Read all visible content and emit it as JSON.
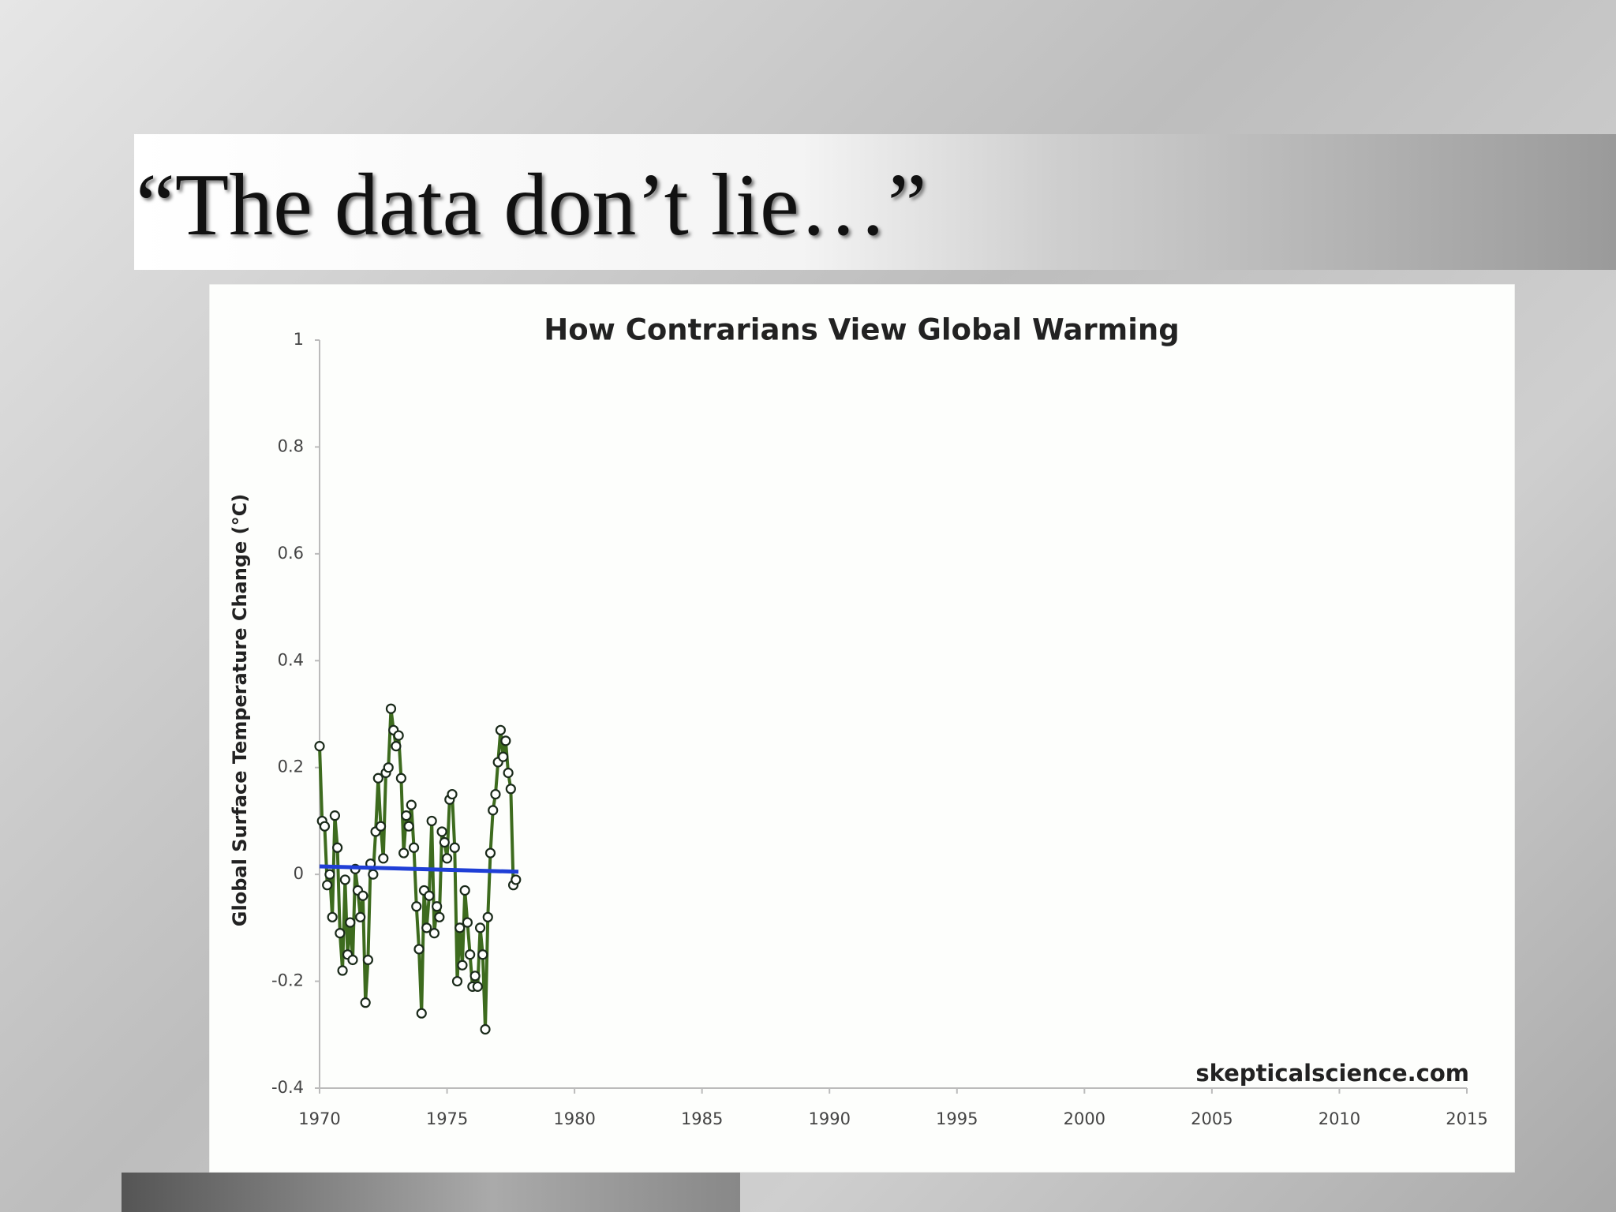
{
  "slide_title": "“The data don’t lie…”",
  "chart_data": {
    "type": "line",
    "title": "How Contrarians View Global Warming",
    "y_label": "Global Surface Temperature Change (°C)",
    "watermark": "skepticalscience.com",
    "xlim": [
      1970,
      2015
    ],
    "xticks": [
      1970,
      1975,
      1980,
      1985,
      1990,
      1995,
      2000,
      2005,
      2010,
      2015
    ],
    "ylim": [
      -0.4,
      1
    ],
    "yticks": [
      -0.4,
      -0.2,
      0,
      0.2,
      0.4,
      0.6,
      0.8,
      1
    ],
    "series": [
      {
        "color": "#3d6b1e",
        "marker": true,
        "x": [
          1970.0,
          1970.1,
          1970.2,
          1970.3,
          1970.4,
          1970.5,
          1970.6,
          1970.7,
          1970.8,
          1970.9,
          1971.0,
          1971.1,
          1971.2,
          1971.3,
          1971.4,
          1971.5,
          1971.6,
          1971.7,
          1971.8,
          1971.9,
          1972.0,
          1972.1,
          1972.2,
          1972.3,
          1972.4,
          1972.5,
          1972.6,
          1972.7,
          1972.8,
          1972.9,
          1973.0,
          1973.1,
          1973.2,
          1973.3,
          1973.4,
          1973.5,
          1973.6,
          1973.7,
          1973.8,
          1973.9,
          1974.0,
          1974.1,
          1974.2,
          1974.3,
          1974.4,
          1974.5,
          1974.6,
          1974.7,
          1974.8,
          1974.9,
          1975.0,
          1975.1,
          1975.2,
          1975.3,
          1975.4,
          1975.5,
          1975.6,
          1975.7,
          1975.8,
          1975.9,
          1976.0,
          1976.1,
          1976.2,
          1976.3,
          1976.4,
          1976.5,
          1976.6,
          1976.7,
          1976.8,
          1976.9,
          1977.0,
          1977.1,
          1977.2,
          1977.3,
          1977.4,
          1977.5,
          1977.6,
          1977.7
        ],
        "values": [
          0.24,
          0.1,
          0.09,
          -0.02,
          0.0,
          -0.08,
          0.11,
          0.05,
          -0.11,
          -0.18,
          -0.01,
          -0.15,
          -0.09,
          -0.16,
          0.01,
          -0.03,
          -0.08,
          -0.04,
          -0.24,
          -0.16,
          0.02,
          0.0,
          0.08,
          0.18,
          0.09,
          0.03,
          0.19,
          0.2,
          0.31,
          0.27,
          0.24,
          0.26,
          0.18,
          0.04,
          0.11,
          0.09,
          0.13,
          0.05,
          -0.06,
          -0.14,
          -0.26,
          -0.03,
          -0.1,
          -0.04,
          0.1,
          -0.11,
          -0.06,
          -0.08,
          0.08,
          0.06,
          0.03,
          0.14,
          0.15,
          0.05,
          -0.2,
          -0.1,
          -0.17,
          -0.03,
          -0.09,
          -0.15,
          -0.21,
          -0.19,
          -0.21,
          -0.1,
          -0.15,
          -0.29,
          -0.08,
          0.04,
          0.12,
          0.15,
          0.21,
          0.27,
          0.22,
          0.25,
          0.19,
          0.16,
          -0.02,
          -0.01
        ]
      },
      {
        "color": "#1f3fd6",
        "marker": false,
        "x": [
          1970,
          1977.8
        ],
        "values": [
          0.015,
          0.005
        ]
      }
    ]
  }
}
